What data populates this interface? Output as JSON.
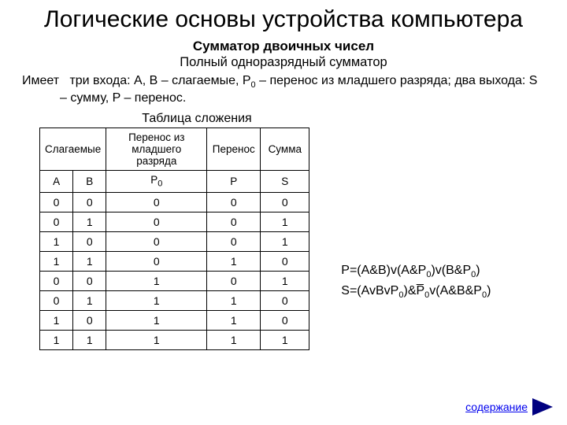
{
  "title": "Логические основы устройства компьютера",
  "subtitle1": "Сумматор двоичных чисел",
  "subtitle2": "Полный одноразрядный сумматор",
  "desc_lead": "Имеет",
  "desc_rest1": "три входа: A, B – слагаемые, P",
  "desc_sub1": "0",
  "desc_rest2": " – перенос из младшего разряда; два выхода: S – сумму, P – перенос.",
  "table_caption": "Таблица сложения",
  "table": {
    "head_group1": "Слагаемые",
    "head_group2": "Перенос из младшего разряда",
    "head_group3": "Перенос",
    "head_group4": "Сумма",
    "h_a": "A",
    "h_b": "B",
    "h_p0_left": "P",
    "h_p0_sub": "0",
    "h_p": "P",
    "h_s": "S",
    "rows": [
      [
        "0",
        "0",
        "0",
        "0",
        "0"
      ],
      [
        "0",
        "1",
        "0",
        "0",
        "1"
      ],
      [
        "1",
        "0",
        "0",
        "0",
        "1"
      ],
      [
        "1",
        "1",
        "0",
        "1",
        "0"
      ],
      [
        "0",
        "0",
        "1",
        "0",
        "1"
      ],
      [
        "0",
        "1",
        "1",
        "1",
        "0"
      ],
      [
        "1",
        "0",
        "1",
        "1",
        "0"
      ],
      [
        "1",
        "1",
        "1",
        "1",
        "1"
      ]
    ]
  },
  "formula1_a": "P=(A&B)v(A&P",
  "formula1_sub1": "0",
  "formula1_b": ")v(B&P",
  "formula1_sub2": "0",
  "formula1_c": ")",
  "formula2_a": "S=(AvBvP",
  "formula2_sub1": "0",
  "formula2_b": ")&P̅",
  "formula2_sub2": "0",
  "formula2_c": "v(A&B&P",
  "formula2_sub3": "0",
  "formula2_d": ")",
  "link_text": "содержание",
  "colors": {
    "link": "#0000ee",
    "triangle": "#000080",
    "border": "#000000",
    "text": "#000000",
    "background": "#ffffff"
  }
}
